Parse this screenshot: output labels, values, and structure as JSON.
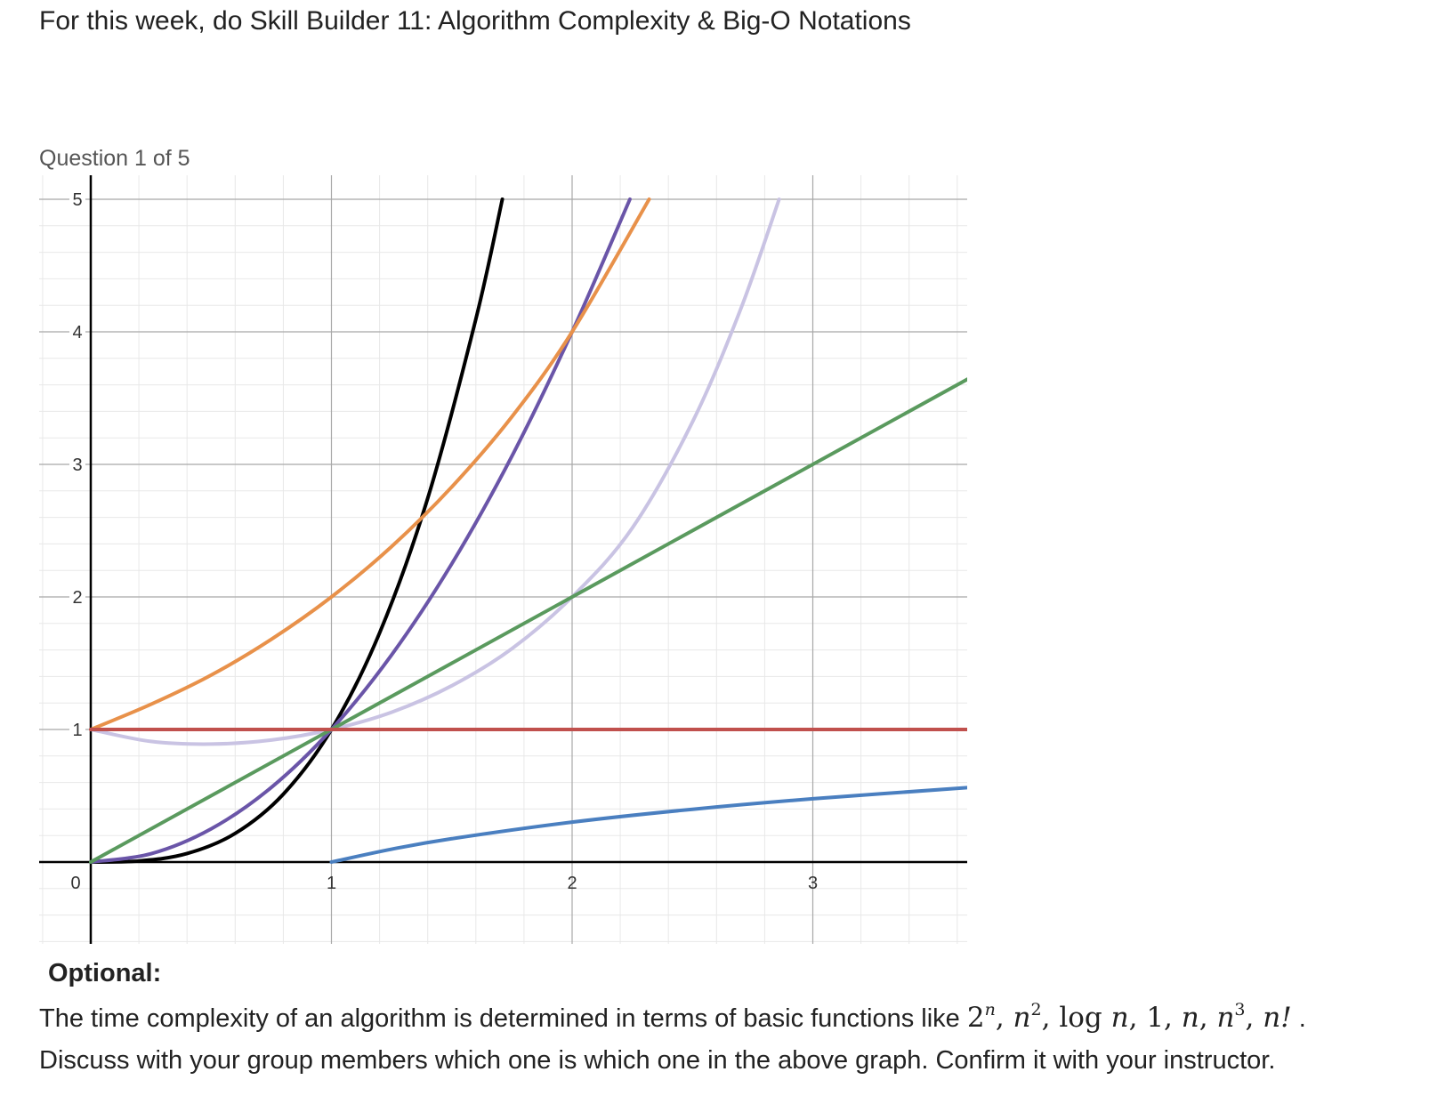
{
  "header": {
    "intro": "For this week, do Skill Builder 11: Algorithm Complexity & Big-O Notations"
  },
  "question": {
    "counter": "Question 1 of 5"
  },
  "chart_data": {
    "type": "line",
    "title": "",
    "xlabel": "",
    "ylabel": "",
    "xlim": [
      -0.21,
      3.65
    ],
    "ylim": [
      -0.62,
      5.2
    ],
    "grid": true,
    "x_ticks": [
      "0",
      "1",
      "2",
      "3"
    ],
    "y_ticks": [
      "1",
      "2",
      "3",
      "4",
      "5"
    ],
    "series": [
      {
        "color": "#000000",
        "x": [
          0,
          0.2,
          0.4,
          0.6,
          0.8,
          1.0,
          1.2,
          1.4,
          1.6,
          1.71
        ],
        "y": [
          0,
          0.008,
          0.064,
          0.216,
          0.512,
          1.0,
          1.728,
          2.744,
          4.096,
          5.0
        ]
      },
      {
        "color": "#6a55a8",
        "x": [
          0,
          0.25,
          0.5,
          0.75,
          1.0,
          1.25,
          1.5,
          1.75,
          2.0,
          2.24
        ],
        "y": [
          0,
          0.0625,
          0.25,
          0.5625,
          1.0,
          1.5625,
          2.25,
          3.0625,
          4.0,
          5.0
        ]
      },
      {
        "color": "#e8914a",
        "x": [
          0,
          0.25,
          0.5,
          0.75,
          1.0,
          1.25,
          1.5,
          1.75,
          2.0,
          2.32
        ],
        "y": [
          1.0,
          1.19,
          1.41,
          1.68,
          2.0,
          2.38,
          2.83,
          3.36,
          4.0,
          5.0
        ]
      },
      {
        "color": "#c9c3e3",
        "x": [
          0,
          0.25,
          0.5,
          0.75,
          1.0,
          1.25,
          1.5,
          1.75,
          2.0,
          2.25,
          2.5,
          2.7,
          2.86
        ],
        "y": [
          1.0,
          0.91,
          0.89,
          0.92,
          1.0,
          1.13,
          1.33,
          1.61,
          2.0,
          2.52,
          3.32,
          4.17,
          5.0
        ]
      },
      {
        "color": "#5a9a5e",
        "x": [
          0,
          3.65
        ],
        "y": [
          0,
          3.65
        ]
      },
      {
        "color": "#c0504d",
        "x": [
          0,
          3.65
        ],
        "y": [
          1,
          1
        ]
      },
      {
        "color": "#4a7fc0",
        "x": [
          1,
          1.25,
          1.5,
          2.0,
          2.5,
          3.0,
          3.65
        ],
        "y": [
          0,
          0.097,
          0.176,
          0.301,
          0.398,
          0.477,
          0.562
        ]
      }
    ]
  },
  "optional": {
    "title": "Optional:",
    "text1": "The time complexity of an algorithm is determined in terms of basic functions like",
    "math_2": "2",
    "math_n": "n",
    "math_sq": "2",
    "math_log": "log",
    "math_1": "1",
    "math_cube": "3",
    "math_fact": "n!",
    "comma": ",",
    "period": ".",
    "text2": "Discuss with your group members which one is which one in the above graph. Confirm it with your instructor."
  }
}
